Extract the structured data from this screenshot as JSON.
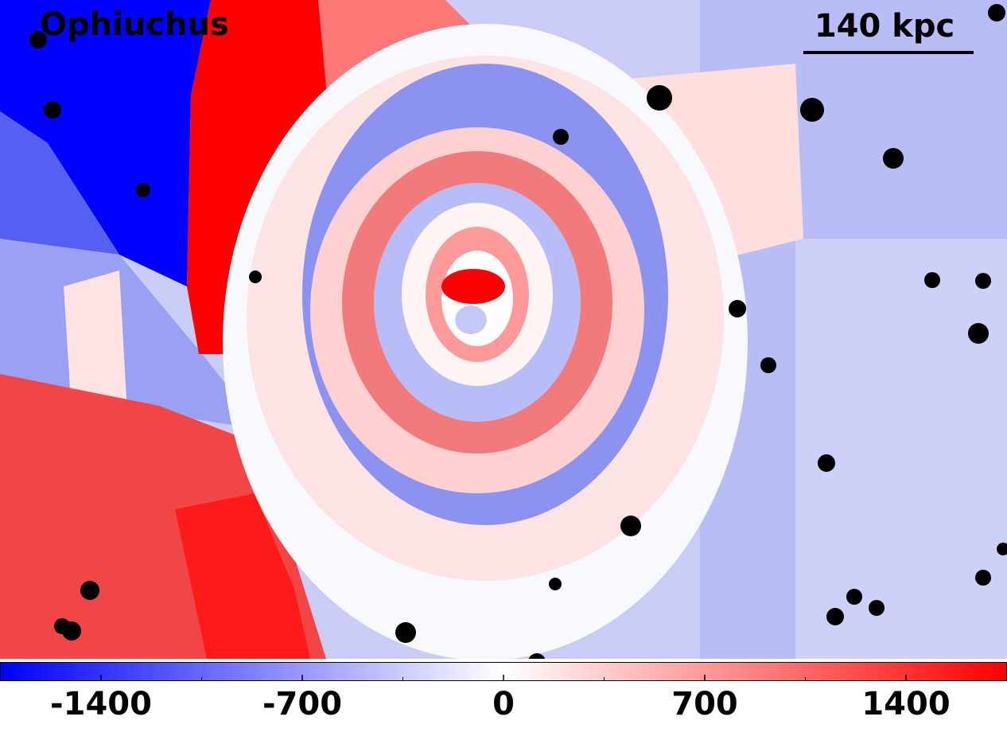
{
  "title": "Ophiuchus",
  "scale_bar": "140 kpc",
  "colorbar": {
    "lim": [
      -1750,
      1750
    ],
    "ticks": [
      -1400,
      -700,
      0,
      700,
      1400
    ],
    "minor_ticks": [
      -1050,
      -350,
      350,
      1050
    ]
  }
}
